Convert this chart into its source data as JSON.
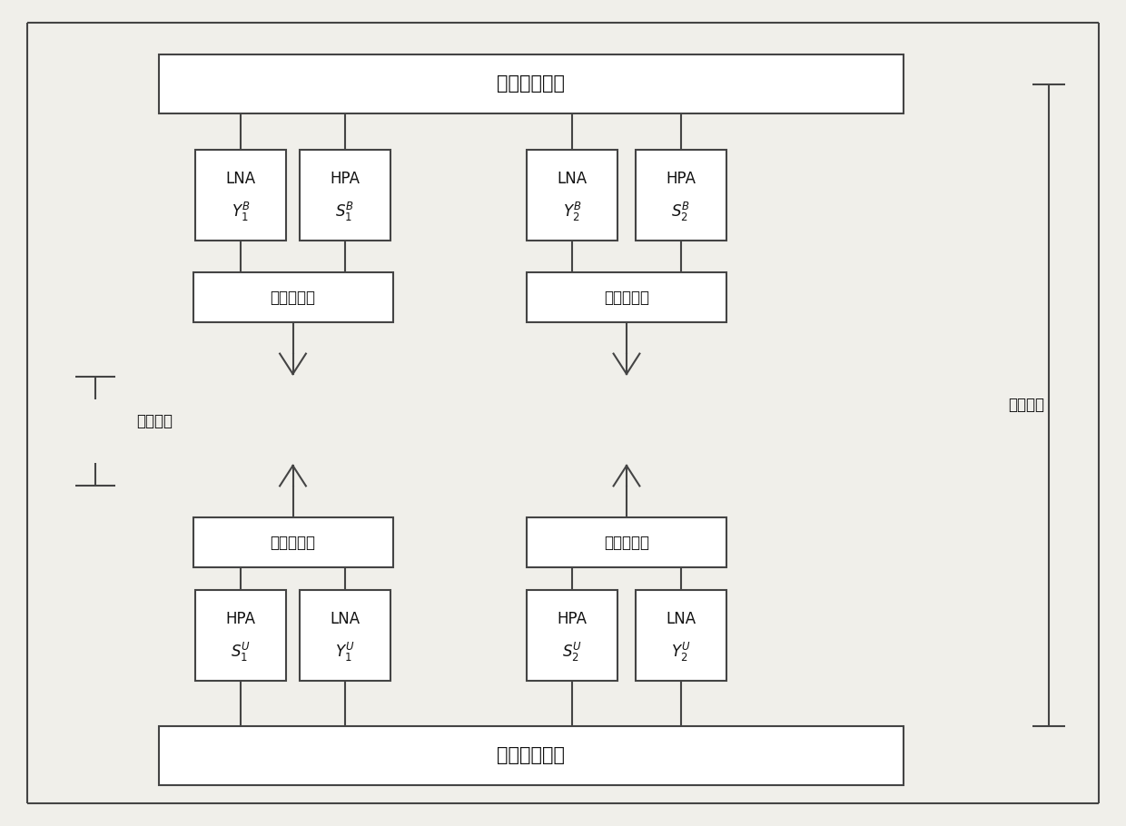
{
  "fig_width": 12.4,
  "fig_height": 9.1,
  "bg_color": "#f0efea",
  "box_color": "#ffffff",
  "box_edge_color": "#444444",
  "line_color": "#444444",
  "font_color": "#111111",
  "title_bs": "基站基带处理",
  "title_ue": "用户基带处理",
  "transceiver_label": "收发转换器",
  "channel_label_left": "空间信道",
  "channel_label_right": "等效信道"
}
